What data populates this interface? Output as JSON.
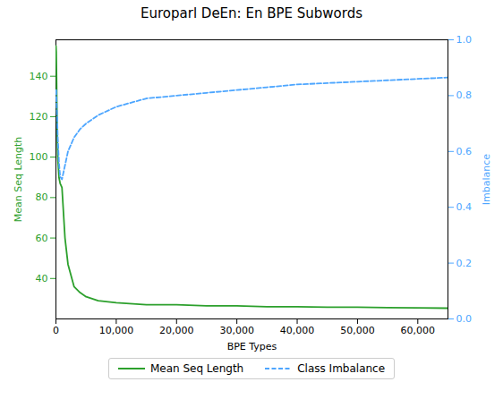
{
  "chart_data": {
    "type": "line",
    "title": "Europarl DeEn: En BPE Subwords",
    "xlabel": "BPE Types",
    "ylabel": "Mean Seq Length",
    "y2label": "Imbalance",
    "xlim": [
      0,
      65000
    ],
    "ylim": [
      20,
      158
    ],
    "y2lim": [
      0.0,
      1.0
    ],
    "xticks": [
      0,
      {
        "value": 10000,
        "label": "10,000"
      },
      {
        "value": 20000,
        "label": "20,000"
      },
      {
        "value": 30000,
        "label": "30,000"
      },
      {
        "value": 40000,
        "label": "40,000"
      },
      {
        "value": 50000,
        "label": "50,000"
      },
      {
        "value": 60000,
        "label": "60,000"
      }
    ],
    "yticks": [
      40,
      60,
      80,
      100,
      120,
      140
    ],
    "y2ticks": [
      {
        "value": 0,
        "label": "0.0"
      },
      0.2,
      0.4,
      0.6,
      0.8,
      {
        "value": 1,
        "label": "1.0"
      }
    ],
    "legend": "bottom",
    "series": [
      {
        "name": "Mean Seq Length",
        "color": "#2ca02c",
        "line_style": "solid",
        "x": [
          0,
          50,
          100,
          200,
          300,
          500,
          700,
          1000,
          1500,
          2000,
          3000,
          4000,
          5000,
          7000,
          10000,
          15000,
          20000,
          25000,
          30000,
          35000,
          40000,
          45000,
          50000,
          55000,
          60000,
          65000
        ],
        "values": [
          155,
          152,
          140,
          115,
          100,
          90,
          87,
          85,
          60,
          47,
          36,
          33,
          31,
          29,
          28,
          27,
          27,
          26.5,
          26.5,
          26,
          26,
          25.8,
          25.8,
          25.6,
          25.5,
          25.3
        ]
      },
      {
        "name": "Class Imbalance",
        "color": "#4da6ff",
        "line_style": "dashed",
        "axis": "y2",
        "x": [
          50,
          100,
          200,
          300,
          500,
          700,
          1000,
          1500,
          2000,
          3000,
          4000,
          5000,
          7000,
          10000,
          15000,
          20000,
          25000,
          30000,
          35000,
          40000,
          45000,
          50000,
          55000,
          60000,
          65000
        ],
        "values": [
          0.82,
          0.78,
          0.72,
          0.65,
          0.56,
          0.51,
          0.5,
          0.55,
          0.6,
          0.65,
          0.68,
          0.7,
          0.73,
          0.76,
          0.79,
          0.8,
          0.81,
          0.82,
          0.83,
          0.84,
          0.845,
          0.85,
          0.855,
          0.86,
          0.865
        ]
      }
    ]
  }
}
